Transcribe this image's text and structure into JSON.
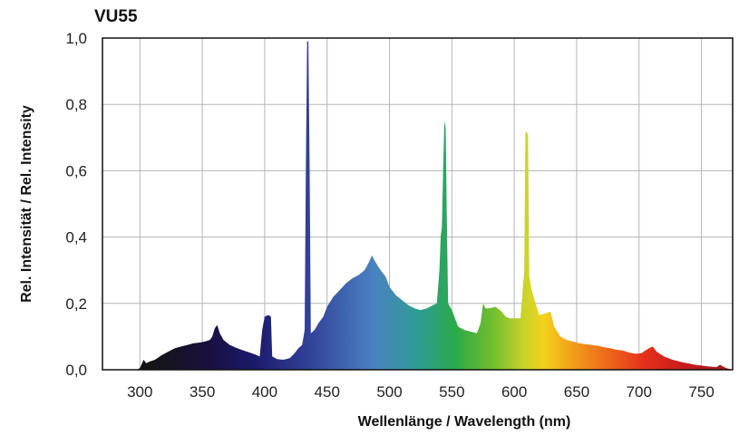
{
  "chart_data": {
    "type": "area",
    "title": "VU55",
    "xlabel": "Wellenlänge / Wavelength (nm)",
    "ylabel": "Rel. Intensität / Rel. Intensity",
    "xlim": [
      270,
      775
    ],
    "ylim": [
      0,
      1.0
    ],
    "x_ticks": [
      300,
      350,
      400,
      450,
      500,
      550,
      600,
      650,
      700,
      750
    ],
    "y_ticks": [
      0,
      0.2,
      0.4,
      0.6,
      0.8,
      1.0
    ],
    "y_tick_labels": [
      "0,0",
      "0,2",
      "0,4",
      "0,6",
      "0,8",
      "1,0"
    ],
    "grid": true,
    "series": [
      {
        "values": [
          [
            270,
            0.0
          ],
          [
            297,
            0.0
          ],
          [
            300,
            0.005
          ],
          [
            303,
            0.03
          ],
          [
            305,
            0.02
          ],
          [
            308,
            0.025
          ],
          [
            312,
            0.03
          ],
          [
            318,
            0.045
          ],
          [
            323,
            0.055
          ],
          [
            328,
            0.065
          ],
          [
            333,
            0.07
          ],
          [
            338,
            0.075
          ],
          [
            343,
            0.08
          ],
          [
            348,
            0.082
          ],
          [
            352,
            0.085
          ],
          [
            356,
            0.09
          ],
          [
            358,
            0.1
          ],
          [
            360,
            0.125
          ],
          [
            362,
            0.135
          ],
          [
            364,
            0.11
          ],
          [
            367,
            0.09
          ],
          [
            372,
            0.075
          ],
          [
            378,
            0.065
          ],
          [
            383,
            0.058
          ],
          [
            388,
            0.052
          ],
          [
            393,
            0.045
          ],
          [
            396,
            0.04
          ],
          [
            398,
            0.12
          ],
          [
            400,
            0.16
          ],
          [
            403,
            0.165
          ],
          [
            405,
            0.16
          ],
          [
            406,
            0.04
          ],
          [
            410,
            0.032
          ],
          [
            415,
            0.03
          ],
          [
            420,
            0.035
          ],
          [
            424,
            0.05
          ],
          [
            427,
            0.065
          ],
          [
            430,
            0.075
          ],
          [
            432,
            0.12
          ],
          [
            433,
            0.6
          ],
          [
            434,
            0.99
          ],
          [
            435,
            0.99
          ],
          [
            436,
            0.6
          ],
          [
            437,
            0.11
          ],
          [
            440,
            0.12
          ],
          [
            443,
            0.14
          ],
          [
            447,
            0.16
          ],
          [
            450,
            0.19
          ],
          [
            455,
            0.22
          ],
          [
            460,
            0.24
          ],
          [
            465,
            0.26
          ],
          [
            470,
            0.275
          ],
          [
            475,
            0.285
          ],
          [
            480,
            0.3
          ],
          [
            483,
            0.32
          ],
          [
            486,
            0.345
          ],
          [
            488,
            0.33
          ],
          [
            492,
            0.305
          ],
          [
            497,
            0.28
          ],
          [
            500,
            0.25
          ],
          [
            505,
            0.225
          ],
          [
            510,
            0.21
          ],
          [
            515,
            0.195
          ],
          [
            520,
            0.185
          ],
          [
            525,
            0.18
          ],
          [
            530,
            0.185
          ],
          [
            535,
            0.195
          ],
          [
            538,
            0.2
          ],
          [
            540,
            0.3
          ],
          [
            541,
            0.4
          ],
          [
            542,
            0.43
          ],
          [
            543,
            0.6
          ],
          [
            544,
            0.75
          ],
          [
            545,
            0.73
          ],
          [
            546,
            0.45
          ],
          [
            547,
            0.2
          ],
          [
            550,
            0.18
          ],
          [
            555,
            0.13
          ],
          [
            560,
            0.12
          ],
          [
            565,
            0.115
          ],
          [
            570,
            0.11
          ],
          [
            573,
            0.14
          ],
          [
            575,
            0.2
          ],
          [
            577,
            0.185
          ],
          [
            580,
            0.185
          ],
          [
            585,
            0.19
          ],
          [
            590,
            0.175
          ],
          [
            593,
            0.16
          ],
          [
            596,
            0.155
          ],
          [
            600,
            0.155
          ],
          [
            605,
            0.155
          ],
          [
            608,
            0.3
          ],
          [
            609,
            0.72
          ],
          [
            611,
            0.71
          ],
          [
            612,
            0.28
          ],
          [
            614,
            0.24
          ],
          [
            617,
            0.2
          ],
          [
            620,
            0.165
          ],
          [
            625,
            0.17
          ],
          [
            629,
            0.175
          ],
          [
            632,
            0.13
          ],
          [
            637,
            0.1
          ],
          [
            642,
            0.09
          ],
          [
            647,
            0.085
          ],
          [
            652,
            0.08
          ],
          [
            657,
            0.077
          ],
          [
            662,
            0.075
          ],
          [
            667,
            0.072
          ],
          [
            672,
            0.068
          ],
          [
            677,
            0.065
          ],
          [
            682,
            0.06
          ],
          [
            687,
            0.058
          ],
          [
            692,
            0.052
          ],
          [
            697,
            0.048
          ],
          [
            702,
            0.05
          ],
          [
            705,
            0.058
          ],
          [
            708,
            0.065
          ],
          [
            711,
            0.07
          ],
          [
            714,
            0.055
          ],
          [
            720,
            0.04
          ],
          [
            727,
            0.03
          ],
          [
            735,
            0.022
          ],
          [
            745,
            0.015
          ],
          [
            755,
            0.01
          ],
          [
            762,
            0.008
          ],
          [
            765,
            0.015
          ],
          [
            767,
            0.01
          ],
          [
            770,
            0.005
          ],
          [
            775,
            0.0
          ]
        ]
      }
    ]
  }
}
